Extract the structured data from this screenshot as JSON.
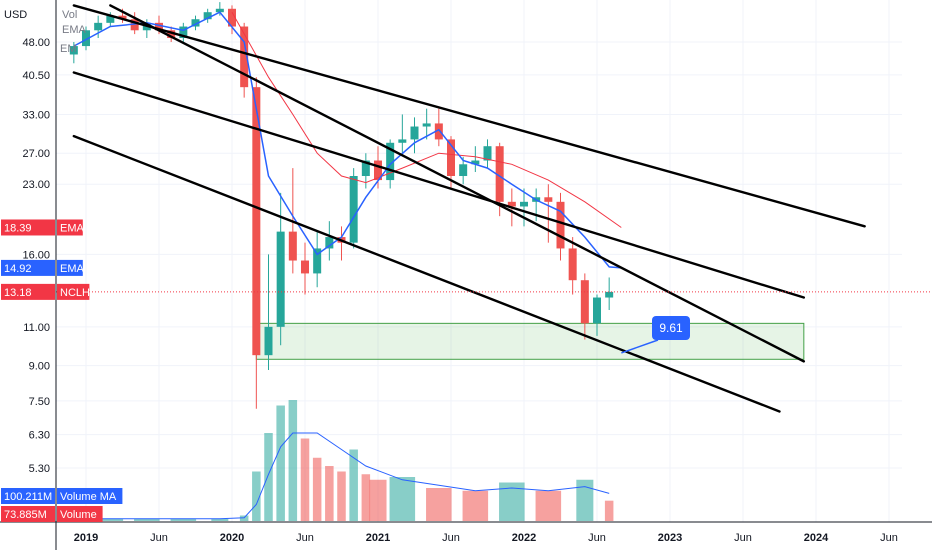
{
  "chart_data": {
    "type": "candlestick",
    "symbol": "NCLH",
    "currency_label": "USD",
    "y_scale": "log",
    "y_ticks": [
      "48.00",
      "40.50",
      "33.00",
      "27.00",
      "23.00",
      "18.39",
      "16.00",
      "14.92",
      "13.18",
      "11.00",
      "9.00",
      "7.50",
      "6.30",
      "5.30"
    ],
    "x_ticks": [
      "2019",
      "Jun",
      "2020",
      "Jun",
      "2021",
      "Jun",
      "2022",
      "Jun",
      "2023",
      "Jun",
      "2024",
      "Jun"
    ],
    "legend_fragments": [
      "Vol",
      "EMA",
      "EM"
    ],
    "price_tags": [
      {
        "label": "EMA",
        "value": "18.39",
        "color": "#f23645"
      },
      {
        "label": "EMA",
        "value": "14.92",
        "color": "#2962ff"
      },
      {
        "label": "NCLH",
        "value": "13.18",
        "color": "#f23645"
      }
    ],
    "volume_tags": [
      {
        "label": "Volume MA",
        "value": "100.211M",
        "color": "#2962ff"
      },
      {
        "label": "Volume",
        "value": "73.885M",
        "color": "#f23645"
      }
    ],
    "last_price": 13.18,
    "annotation": {
      "text": "9.61",
      "value": 9.61,
      "date": "2022-09"
    },
    "support_zone": {
      "low": 9.3,
      "high": 11.2,
      "from": "2020-03",
      "to": "2023-12"
    },
    "channel_lines": [
      {
        "from": [
          "2018-12",
          58
        ],
        "to": [
          "2024-05",
          18.5
        ]
      },
      {
        "from": [
          "2018-12",
          41
        ],
        "to": [
          "2023-12",
          12.8
        ]
      },
      {
        "from": [
          "2019-03",
          58
        ],
        "to": [
          "2023-12",
          9.2
        ]
      },
      {
        "from": [
          "2018-12",
          29.5
        ],
        "to": [
          "2023-10",
          7.1
        ]
      }
    ],
    "ema_fast": [
      [
        "2018-12",
        47
      ],
      [
        "2019-03",
        52
      ],
      [
        "2019-06",
        53
      ],
      [
        "2019-09",
        51
      ],
      [
        "2019-12",
        56
      ],
      [
        "2020-02",
        48
      ],
      [
        "2020-04",
        24
      ],
      [
        "2020-06",
        19.5
      ],
      [
        "2020-08",
        16
      ],
      [
        "2020-10",
        17.5
      ],
      [
        "2020-12",
        21.5
      ],
      [
        "2021-02",
        25.5
      ],
      [
        "2021-04",
        28.5
      ],
      [
        "2021-06",
        30.5
      ],
      [
        "2021-08",
        26
      ],
      [
        "2021-10",
        25
      ],
      [
        "2021-12",
        23
      ],
      [
        "2022-02",
        21.2
      ],
      [
        "2022-04",
        20
      ],
      [
        "2022-06",
        17.5
      ],
      [
        "2022-08",
        15
      ],
      [
        "2022-09",
        14.92
      ]
    ],
    "ema_slow": [
      [
        "2020-01",
        56
      ],
      [
        "2020-04",
        40
      ],
      [
        "2020-06",
        33
      ],
      [
        "2020-08",
        27
      ],
      [
        "2020-10",
        24
      ],
      [
        "2020-12",
        23.2
      ],
      [
        "2021-03",
        25
      ],
      [
        "2021-06",
        27
      ],
      [
        "2021-09",
        26.5
      ],
      [
        "2021-12",
        25.5
      ],
      [
        "2022-03",
        23.5
      ],
      [
        "2022-06",
        21
      ],
      [
        "2022-09",
        18.39
      ]
    ],
    "ohlc_monthly": [
      [
        "2018-12",
        45,
        48,
        43,
        47
      ],
      [
        "2019-01",
        47,
        52,
        46,
        51
      ],
      [
        "2019-02",
        51,
        55,
        49,
        53
      ],
      [
        "2019-03",
        53,
        56,
        52,
        55
      ],
      [
        "2019-04",
        55,
        57,
        53,
        54
      ],
      [
        "2019-05",
        54,
        56,
        50,
        51
      ],
      [
        "2019-06",
        51,
        54,
        49,
        53
      ],
      [
        "2019-07",
        53,
        55,
        50,
        51
      ],
      [
        "2019-08",
        51,
        52,
        48,
        49
      ],
      [
        "2019-09",
        49,
        53,
        48,
        52
      ],
      [
        "2019-10",
        52,
        55,
        51,
        54
      ],
      [
        "2019-11",
        54,
        57,
        53,
        56
      ],
      [
        "2019-12",
        56,
        59,
        55,
        57
      ],
      [
        "2020-01",
        57,
        58,
        50,
        52
      ],
      [
        "2020-02",
        52,
        53,
        36,
        38
      ],
      [
        "2020-03",
        38,
        40,
        7.2,
        9.5
      ],
      [
        "2020-04",
        9.5,
        16,
        8.8,
        11
      ],
      [
        "2020-05",
        11,
        22,
        10,
        18
      ],
      [
        "2020-06",
        18,
        25,
        14.5,
        15.5
      ],
      [
        "2020-07",
        15.5,
        17,
        13,
        14.5
      ],
      [
        "2020-08",
        14.5,
        18,
        13.5,
        16.5
      ],
      [
        "2020-09",
        16.5,
        19,
        15.5,
        17.5
      ],
      [
        "2020-10",
        17.5,
        18.5,
        15.5,
        17
      ],
      [
        "2020-11",
        17,
        25,
        16.5,
        24
      ],
      [
        "2020-12",
        24,
        27,
        22.5,
        26
      ],
      [
        "2021-01",
        26,
        28,
        22.5,
        23.5
      ],
      [
        "2021-02",
        23.5,
        29,
        22.5,
        28.5
      ],
      [
        "2021-03",
        28.5,
        33,
        27,
        29
      ],
      [
        "2021-04",
        29,
        32.5,
        27,
        31
      ],
      [
        "2021-05",
        31,
        34,
        29,
        31.5
      ],
      [
        "2021-06",
        31.5,
        34,
        28,
        29
      ],
      [
        "2021-07",
        29,
        29.5,
        22.5,
        24
      ],
      [
        "2021-08",
        24,
        26.5,
        23,
        25.5
      ],
      [
        "2021-09",
        25.5,
        28,
        24.5,
        26
      ],
      [
        "2021-10",
        26,
        29,
        25,
        28
      ],
      [
        "2021-11",
        28,
        28.5,
        19.5,
        21
      ],
      [
        "2021-12",
        21,
        22.5,
        18.5,
        20.5
      ],
      [
        "2022-01",
        20.5,
        22.5,
        18.5,
        21
      ],
      [
        "2022-02",
        21,
        22.5,
        19,
        21.5
      ],
      [
        "2022-03",
        21.5,
        23,
        17,
        21
      ],
      [
        "2022-04",
        21,
        22,
        15.5,
        16.5
      ],
      [
        "2022-05",
        16.5,
        17.5,
        13,
        14
      ],
      [
        "2022-06",
        14,
        14.5,
        10.3,
        11.2
      ],
      [
        "2022-07",
        11.2,
        13,
        10.5,
        12.8
      ],
      [
        "2022-08",
        12.8,
        14.2,
        12,
        13.18
      ]
    ],
    "volume_millions": [
      [
        "2018-12",
        8
      ],
      [
        "2019-03",
        8
      ],
      [
        "2019-06",
        8
      ],
      [
        "2019-09",
        8
      ],
      [
        "2019-12",
        8
      ],
      [
        "2020-02",
        20
      ],
      [
        "2020-03",
        180
      ],
      [
        "2020-04",
        320
      ],
      [
        "2020-05",
        420
      ],
      [
        "2020-06",
        440
      ],
      [
        "2020-07",
        300
      ],
      [
        "2020-08",
        230
      ],
      [
        "2020-09",
        200
      ],
      [
        "2020-10",
        180
      ],
      [
        "2020-11",
        260
      ],
      [
        "2020-12",
        170
      ],
      [
        "2021-01",
        150
      ],
      [
        "2021-03",
        160
      ],
      [
        "2021-06",
        120
      ],
      [
        "2021-09",
        110
      ],
      [
        "2021-12",
        140
      ],
      [
        "2022-03",
        110
      ],
      [
        "2022-06",
        150
      ],
      [
        "2022-08",
        73.885
      ]
    ],
    "volume_ma_millions": [
      [
        "2018-12",
        8
      ],
      [
        "2019-06",
        8
      ],
      [
        "2019-12",
        8
      ],
      [
        "2020-02",
        12
      ],
      [
        "2020-03",
        60
      ],
      [
        "2020-04",
        170
      ],
      [
        "2020-05",
        270
      ],
      [
        "2020-06",
        320
      ],
      [
        "2020-08",
        320
      ],
      [
        "2020-10",
        260
      ],
      [
        "2020-12",
        200
      ],
      [
        "2021-03",
        150
      ],
      [
        "2021-06",
        130
      ],
      [
        "2021-09",
        110
      ],
      [
        "2021-12",
        120
      ],
      [
        "2022-03",
        110
      ],
      [
        "2022-06",
        125
      ],
      [
        "2022-08",
        100.211
      ]
    ]
  }
}
